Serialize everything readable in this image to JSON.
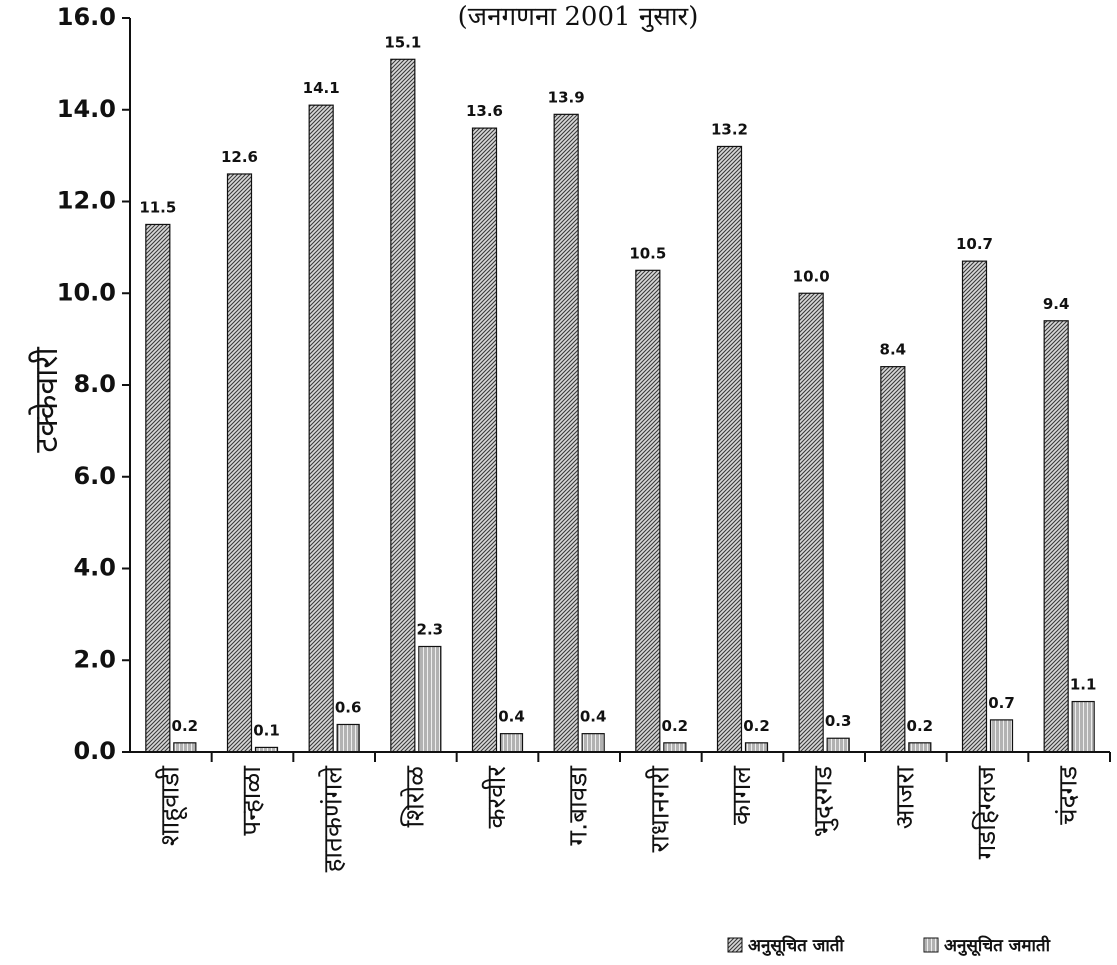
{
  "chart_data": {
    "type": "bar",
    "subtitle": "(जनगणना 2001 नुसार)",
    "xlabel": "",
    "ylabel": "टक्केवारी",
    "ylim": [
      0,
      16
    ],
    "yticks": [
      "0.0",
      "2.0",
      "4.0",
      "6.0",
      "8.0",
      "10.0",
      "12.0",
      "14.0",
      "16.0"
    ],
    "grid": false,
    "legend_position": "bottom-right",
    "categories": [
      "शाहूवाडी",
      "पन्हाळा",
      "हातकणंगले",
      "शिरोळ",
      "करवीर",
      "ग.बावडा",
      "राधानगरी",
      "कागल",
      "भुदरगड",
      "आजरा",
      "गडहिंग्लज",
      "चंदगड"
    ],
    "series": [
      {
        "name": "अनुसूचित जाती",
        "values": [
          11.5,
          12.6,
          14.1,
          15.1,
          13.6,
          13.9,
          10.5,
          13.2,
          10.0,
          8.4,
          10.7,
          9.4
        ],
        "labels": [
          "11.5",
          "12.6",
          "14.1",
          "15.1",
          "13.6",
          "13.9",
          "10.5",
          "13.2",
          "10.0",
          "8.4",
          "10.7",
          "9.4"
        ],
        "color": "#9a9a9a"
      },
      {
        "name": "अनुसूचित जमाती",
        "values": [
          0.2,
          0.1,
          0.6,
          2.3,
          0.4,
          0.4,
          0.2,
          0.2,
          0.3,
          0.2,
          0.7,
          1.1
        ],
        "labels": [
          "0.2",
          "0.1",
          "0.6",
          "2.3",
          "0.4",
          "0.4",
          "0.2",
          "0.2",
          "0.3",
          "0.2",
          "0.7",
          "1.1"
        ],
        "color": "#c4c4c4"
      }
    ]
  }
}
